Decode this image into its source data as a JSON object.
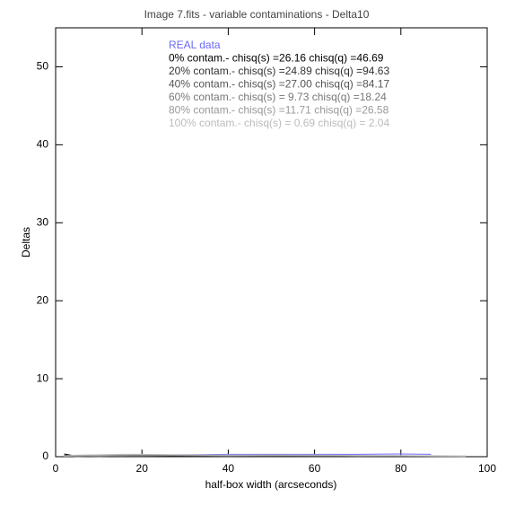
{
  "chart_data": {
    "type": "line",
    "title": "Image 7.fits - variable contaminations - Delta10",
    "x_label": "half-box width (arcseconds)",
    "y_label": "Deltas",
    "x": [
      2,
      5,
      10,
      15,
      20,
      30,
      40,
      50,
      60,
      70,
      80,
      87,
      95
    ],
    "series": [
      {
        "name": "REAL data",
        "color": "#6a6aff",
        "values": [
          0.1,
          0.05,
          0.1,
          0.15,
          0.2,
          0.25,
          0.3,
          0.3,
          0.3,
          0.3,
          0.35,
          0.3,
          null
        ]
      },
      {
        "name": "0% contam.- chisq(s) =26.16 chisq(q) =46.69",
        "color": "#000000",
        "values": [
          0.35,
          0.05,
          0.05,
          0.0,
          0.1,
          0.05,
          0.1,
          0.05,
          0.1,
          0.05,
          0.05,
          0.0,
          null
        ]
      },
      {
        "name": "20% contam.- chisq(s) =24.89 chisq(q) =94.63",
        "color": "#333333",
        "values": [
          0.2,
          0.1,
          0.0,
          0.1,
          0.05,
          0.15,
          0.1,
          0.1,
          0.05,
          0.1,
          0.1,
          0.05,
          0.0
        ]
      },
      {
        "name": "40% contam.- chisq(s) =27.00 chisq(q) =84.17",
        "color": "#555555",
        "values": [
          0.15,
          0.0,
          0.1,
          0.05,
          0.15,
          0.1,
          0.05,
          0.1,
          0.1,
          0.05,
          0.1,
          0.05,
          0.05
        ]
      },
      {
        "name": "60% contam.- chisq(s) = 9.73 chisq(q) =18.24",
        "color": "#777777",
        "values": [
          0.1,
          0.15,
          0.05,
          0.1,
          0.1,
          0.2,
          0.15,
          0.1,
          0.15,
          0.1,
          0.1,
          0.1,
          0.05
        ]
      },
      {
        "name": "80% contam.- chisq(s) =11.71 chisq(q) =26.58",
        "color": "#999999",
        "values": [
          0.05,
          0.1,
          0.15,
          0.2,
          0.25,
          0.2,
          0.15,
          0.2,
          0.15,
          0.15,
          0.1,
          0.1,
          0.05
        ]
      },
      {
        "name": "100% contam.- chisq(s) = 0.69 chisq(q) = 2.04",
        "color": "#bbbbbb",
        "values": [
          0.1,
          0.2,
          0.25,
          0.3,
          0.3,
          0.25,
          0.2,
          0.2,
          0.2,
          0.15,
          0.15,
          0.1,
          0.1
        ]
      }
    ],
    "xlim": [
      0,
      100
    ],
    "ylim": [
      0,
      55
    ],
    "xticks": [
      0,
      20,
      40,
      60,
      80,
      100
    ],
    "yticks": [
      0,
      10,
      20,
      30,
      40,
      50
    ]
  }
}
